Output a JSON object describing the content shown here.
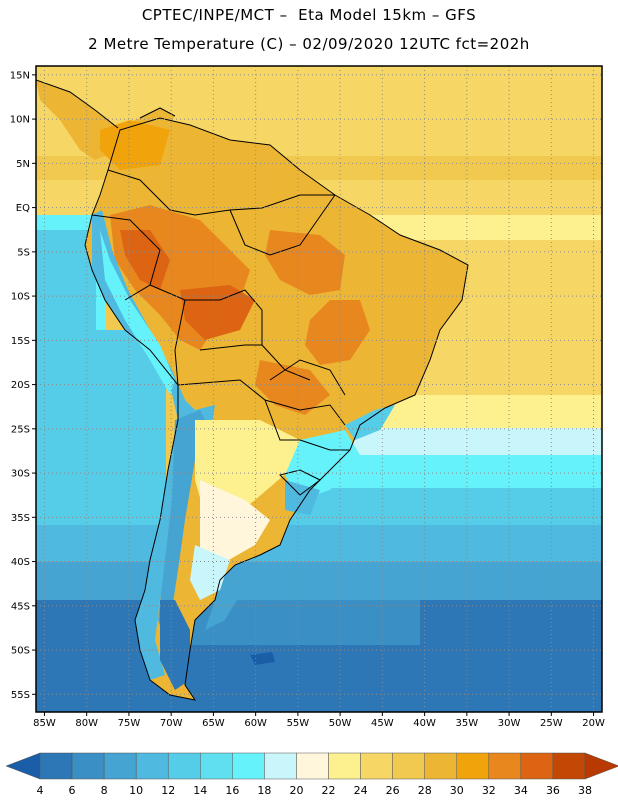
{
  "title": {
    "line1": "CPTEC/INPE/MCT –  Eta Model 15km – GFS",
    "line2": "2 Metre Temperature (C) – 02/09/2020 12UTC fct=202h"
  },
  "map": {
    "lat_labels": [
      "15N",
      "10N",
      "5N",
      "EQ",
      "5S",
      "10S",
      "15S",
      "20S",
      "25S",
      "30S",
      "35S",
      "40S",
      "45S",
      "50S",
      "55S"
    ],
    "lon_labels": [
      "85W",
      "80W",
      "75W",
      "70W",
      "65W",
      "60W",
      "55W",
      "50W",
      "45W",
      "40W",
      "35W",
      "30W",
      "25W",
      "20W"
    ],
    "lat_range": [
      -57,
      16
    ],
    "lon_range": [
      -86,
      -19
    ]
  },
  "colorbar": {
    "labels": [
      "4",
      "6",
      "8",
      "10",
      "12",
      "14",
      "16",
      "18",
      "20",
      "22",
      "24",
      "26",
      "28",
      "30",
      "32",
      "34",
      "36",
      "38"
    ],
    "colors": [
      "#1a5ea8",
      "#2d77b6",
      "#3a8fc4",
      "#45a4d2",
      "#4fb9df",
      "#56cde8",
      "#5fdfef",
      "#66f2fa",
      "#c9f6fb",
      "#fff6dc",
      "#fdf08f",
      "#f6d765",
      "#f2c94f",
      "#ecb634",
      "#f1a30b",
      "#e8871e",
      "#dd6413",
      "#c44805",
      "#b83a02"
    ]
  }
}
